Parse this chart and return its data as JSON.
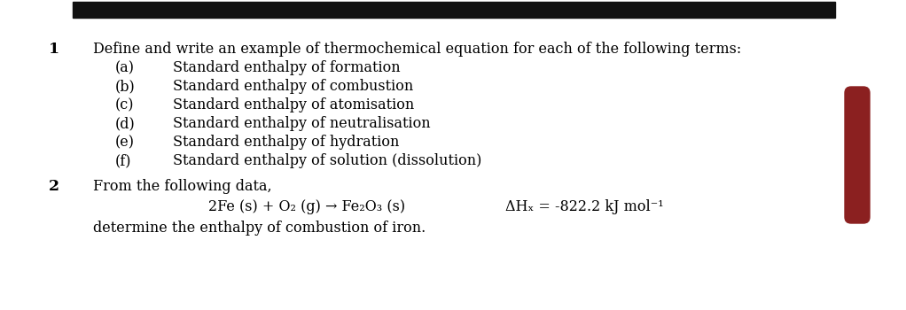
{
  "bg_color": "#ffffff",
  "header_bar_color": "#111111",
  "red_bar_color": "#8b2020",
  "q1_number": "1",
  "q1_text": "Define and write an example of thermochemical equation for each of the following terms:",
  "sub_items": [
    [
      "(a)",
      "Standard enthalpy of formation"
    ],
    [
      "(b)",
      "Standard enthalpy of combustion"
    ],
    [
      "(c)",
      "Standard enthalpy of atomisation"
    ],
    [
      "(d)",
      "Standard enthalpy of neutralisation"
    ],
    [
      "(e)",
      "Standard enthalpy of hydration"
    ],
    [
      "(f)",
      "Standard enthalpy of solution (dissolution)"
    ]
  ],
  "q2_number": "2",
  "q2_line1": "From the following data,",
  "q2_eq_left": "2Fe (s) + O₂ (g) → Fe₂O₃ (s)",
  "q2_eq_right": "ΔHₓ = -822.2 kJ mol⁻¹",
  "q2_line3": "determine the enthalpy of combustion of iron.",
  "font_size": 11.5,
  "font_family": "DejaVu Serif"
}
